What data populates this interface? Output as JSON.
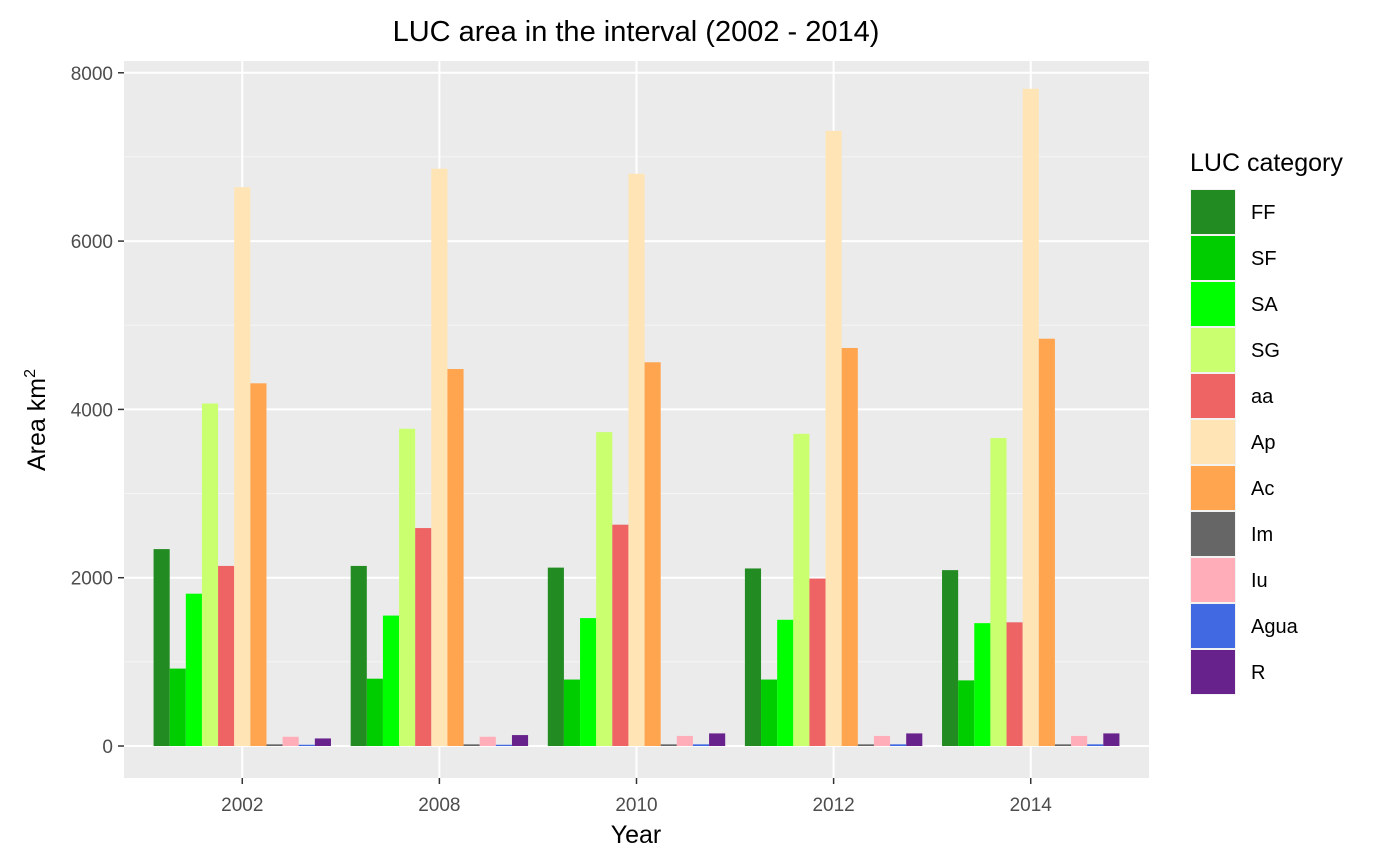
{
  "chart_data": {
    "type": "bar",
    "title": "LUC area in the interval (2002 - 2014)",
    "xlabel": "Year",
    "ylabel": "Area km",
    "ylabel_superscript": "2",
    "categories": [
      "2002",
      "2008",
      "2010",
      "2012",
      "2014"
    ],
    "y_ticks": [
      0,
      2000,
      4000,
      6000,
      8000
    ],
    "y_tick_labels": [
      "0",
      "2000",
      "4000",
      "6000",
      "8000"
    ],
    "ylim": [
      -380,
      8140
    ],
    "grid": true,
    "legend": {
      "title": "LUC category",
      "position": "right"
    },
    "series": [
      {
        "name": "FF",
        "color": "#228B22",
        "values": [
          2340,
          2140,
          2120,
          2110,
          2090
        ]
      },
      {
        "name": "SF",
        "color": "#00CD00",
        "values": [
          920,
          800,
          790,
          790,
          780
        ]
      },
      {
        "name": "SA",
        "color": "#00FF00",
        "values": [
          1810,
          1550,
          1520,
          1500,
          1460
        ]
      },
      {
        "name": "SG",
        "color": "#CAFF70",
        "values": [
          4070,
          3770,
          3730,
          3710,
          3660
        ]
      },
      {
        "name": "aa",
        "color": "#EE6363",
        "values": [
          2140,
          2590,
          2630,
          1990,
          1470
        ]
      },
      {
        "name": "Ap",
        "color": "#FFE4B5",
        "values": [
          6640,
          6860,
          6800,
          7310,
          7810
        ]
      },
      {
        "name": "Ac",
        "color": "#FFA54F",
        "values": [
          4310,
          4480,
          4560,
          4730,
          4840
        ]
      },
      {
        "name": "Im",
        "color": "#666666",
        "values": [
          20,
          20,
          20,
          20,
          20
        ]
      },
      {
        "name": "Iu",
        "color": "#FFAEB9",
        "values": [
          110,
          110,
          120,
          120,
          120
        ]
      },
      {
        "name": "Agua",
        "color": "#4169E1",
        "values": [
          15,
          15,
          20,
          20,
          20
        ]
      },
      {
        "name": "R",
        "color": "#68228B",
        "values": [
          90,
          130,
          150,
          150,
          150
        ]
      }
    ]
  },
  "colors": {
    "panel_background": "#EBEBEB",
    "grid_major": "#FFFFFF",
    "grid_minor": "#F5F5F5"
  }
}
